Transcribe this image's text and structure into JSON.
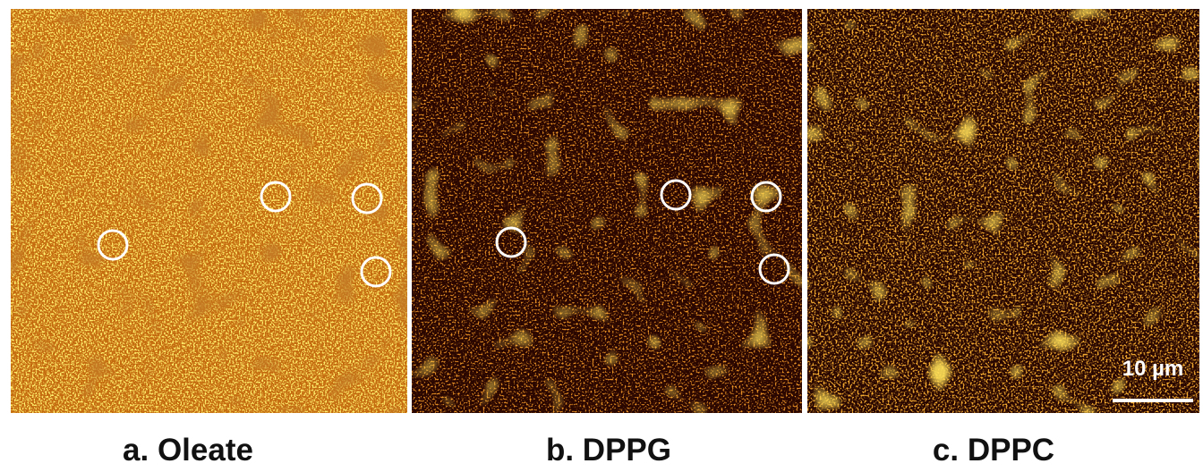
{
  "panels": [
    {
      "label": "a. Oleate"
    },
    {
      "label": "b. DPPG"
    },
    {
      "label": "c. DPPC"
    }
  ],
  "scale_bar": "10 µm"
}
